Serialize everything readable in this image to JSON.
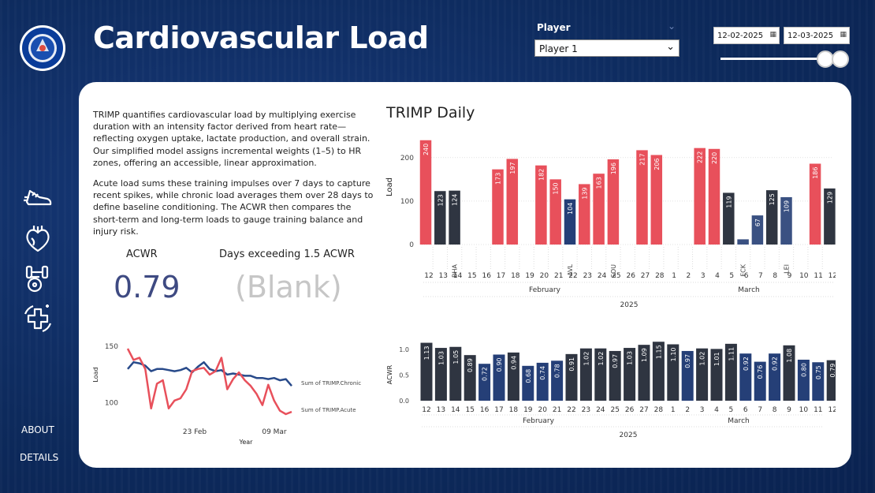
{
  "app": {
    "title": "Cardiovascular Load",
    "logo_text": "CHELSEA FOOTBALL CLUB"
  },
  "filters": {
    "player_label": "Player",
    "player_value": "Player 1",
    "date_start": "12-02-2025",
    "date_end": "12-03-2025",
    "slider_range": [
      0.88,
      1.0
    ]
  },
  "sidebar": {
    "icons": [
      "running-shoe-icon",
      "heart-icon",
      "dumbbell-icon",
      "medical-cross-icon"
    ],
    "links": [
      "ABOUT",
      "DETAILS"
    ]
  },
  "description": {
    "p1": "TRIMP quantifies cardiovascular load by multiplying exercise duration with an intensity factor derived from heart rate—reflecting oxygen uptake, lactate production, and overall strain. Our simplified model assigns incremental weights (1–5) to HR zones, offering an accessible, linear approximation.",
    "p2": "Acute load sums these training impulses over 7 days to capture recent spikes, while chronic load averages them over 28 days to define baseline conditioning. The ACWR then compares the short-term and long-term loads to gauge training balance and injury risk."
  },
  "kpis": {
    "acwr_label": "ACWR",
    "acwr_value": "0.79",
    "exceed_label": "Days exceeding 1.5 ACWR",
    "exceed_value": "(Blank)"
  },
  "colors": {
    "background": "#0d2a5c",
    "red": "#e8505b",
    "dark": "#2f3541",
    "navy": "#253f77",
    "mid": "#3a5182",
    "acwr_value": "#3e4a82",
    "blank": "#c6c6c6"
  },
  "chart_data": [
    {
      "type": "bar",
      "title": "TRIMP Daily",
      "ylabel": "Load",
      "ylim": [
        0,
        245
      ],
      "yticks": [
        0,
        100,
        200
      ],
      "categories": [
        "12",
        "13",
        "14",
        "15",
        "16",
        "17",
        "18",
        "19",
        "20",
        "21",
        "22",
        "23",
        "24",
        "25",
        "26",
        "27",
        "28",
        "1",
        "2",
        "3",
        "4",
        "5",
        "6",
        "7",
        "8",
        "9",
        "10",
        "11",
        "12"
      ],
      "values": [
        240,
        123,
        124,
        null,
        null,
        173,
        197,
        null,
        182,
        150,
        104,
        139,
        163,
        196,
        null,
        217,
        206,
        null,
        null,
        222,
        220,
        119,
        12,
        67,
        125,
        109,
        null,
        186,
        129
      ],
      "labels": [
        "240",
        "123",
        "124",
        "",
        "",
        "173",
        "197",
        "",
        "182",
        "150",
        "104",
        "139",
        "163",
        "196",
        "",
        "217",
        "206",
        "",
        "",
        "222",
        "220",
        "119",
        "",
        "67",
        "125",
        "109",
        "",
        "186",
        "129"
      ],
      "bar_colors": [
        "red",
        "dark",
        "dark",
        "",
        "",
        "red",
        "red",
        "",
        "red",
        "red",
        "navy",
        "red",
        "red",
        "red",
        "",
        "red",
        "red",
        "",
        "",
        "red",
        "red",
        "dark",
        "mid",
        "mid",
        "dark",
        "mid",
        "",
        "red",
        "dark"
      ],
      "opponents": [
        "",
        "",
        "BHA",
        "",
        "",
        "",
        "",
        "",
        "",
        "",
        "AVL",
        "",
        "",
        "SOU",
        "",
        "",
        "",
        "",
        "",
        "",
        "",
        "",
        "FCK",
        "",
        "",
        "LEI",
        "",
        "",
        ""
      ],
      "month_labels": [
        "February",
        "March"
      ],
      "year_label": "2025"
    },
    {
      "type": "bar",
      "ylabel": "ACWR",
      "ylim": [
        0,
        1.2
      ],
      "yticks": [
        "0.0",
        "0.5",
        "1.0"
      ],
      "categories": [
        "12",
        "13",
        "14",
        "15",
        "16",
        "17",
        "18",
        "19",
        "20",
        "21",
        "22",
        "23",
        "24",
        "25",
        "26",
        "27",
        "28",
        "1",
        "2",
        "3",
        "4",
        "5",
        "6",
        "7",
        "8",
        "9",
        "10",
        "11",
        "12"
      ],
      "values": [
        1.13,
        1.03,
        1.05,
        0.89,
        0.72,
        0.9,
        0.94,
        0.68,
        0.74,
        0.78,
        0.91,
        1.02,
        1.02,
        0.97,
        1.03,
        1.09,
        1.15,
        1.1,
        0.97,
        1.02,
        1.01,
        1.11,
        0.92,
        0.76,
        0.92,
        1.08,
        0.8,
        0.75,
        0.79
      ],
      "labels": [
        "1.13",
        "1.03",
        "1.05",
        "0.89",
        "0.72",
        "0.90",
        "0.94",
        "0.68",
        "0.74",
        "0.78",
        "0.91",
        "1.02",
        "1.02",
        "0.97",
        "1.03",
        "1.09",
        "1.15",
        "1.10",
        "0.97",
        "1.02",
        "1.01",
        "1.11",
        "0.92",
        "0.76",
        "0.92",
        "1.08",
        "0.80",
        "0.75",
        "0.79"
      ],
      "bar_colors": [
        "dark",
        "dark",
        "dark",
        "dark",
        "navy",
        "navy",
        "dark",
        "navy",
        "navy",
        "navy",
        "dark",
        "dark",
        "dark",
        "dark",
        "dark",
        "dark",
        "dark",
        "dark",
        "navy",
        "dark",
        "dark",
        "dark",
        "navy",
        "navy",
        "navy",
        "dark",
        "navy",
        "navy",
        "dark"
      ],
      "month_labels": [
        "February",
        "March"
      ],
      "year_label": "2025"
    },
    {
      "type": "line",
      "ylabel": "Load",
      "xlabel": "Year",
      "ylim": [
        90,
        155
      ],
      "yticks": [
        "150",
        "100"
      ],
      "xtick_labels": [
        "23 Feb",
        "09 Mar"
      ],
      "series": [
        {
          "name": "Sum of TRIMP.Chronic",
          "color": "dark-blue",
          "values": [
            130,
            136,
            135,
            133,
            128,
            130,
            130,
            129,
            128,
            129,
            131,
            127,
            132,
            136,
            130,
            128,
            129,
            125,
            126,
            125,
            124,
            124,
            122,
            122,
            121,
            122,
            120,
            121,
            115
          ]
        },
        {
          "name": "Sum of TRIMP.Acute",
          "color": "red",
          "values": [
            148,
            138,
            140,
            130,
            95,
            117,
            120,
            95,
            102,
            104,
            112,
            128,
            130,
            131,
            125,
            128,
            140,
            112,
            121,
            127,
            120,
            115,
            108,
            98,
            116,
            102,
            93,
            90,
            92
          ]
        }
      ]
    }
  ]
}
